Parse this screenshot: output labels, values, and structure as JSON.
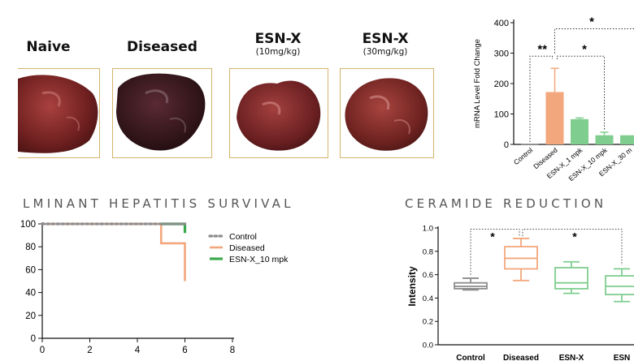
{
  "livers": [
    {
      "label": "Naive",
      "sub": ""
    },
    {
      "label": "Diseased",
      "sub": ""
    },
    {
      "label": "ESN-X",
      "sub": "(10mg/kg)"
    },
    {
      "label": "ESN-X",
      "sub": "(30mg/kg)"
    }
  ],
  "colors": {
    "control": "#8c8c8c",
    "diseased": "#f2a77c",
    "esn": "#7fce8f",
    "esn_survival": "#3aa94c",
    "liver_frame": "#d4b36a"
  },
  "chart_data": [
    {
      "type": "bar",
      "title": "",
      "ylabel": "mRNA Level Fold Change",
      "xlabel": "",
      "ylim": [
        0,
        400
      ],
      "yticks": [
        0,
        100,
        200,
        300,
        400
      ],
      "categories": [
        "Control",
        "Diseased",
        "ESN-X_1 mpk",
        "ESN-X_10 mpk",
        "ESN-X_30 m"
      ],
      "values": [
        2,
        172,
        83,
        30,
        30
      ],
      "errors": [
        0,
        78,
        4,
        10,
        0
      ],
      "significance": [
        "**",
        "*",
        "*"
      ]
    },
    {
      "type": "line",
      "title": "LMINANT HEPATITIS SURVIVAL",
      "xlabel": "",
      "ylabel": "",
      "xlim": [
        0,
        8
      ],
      "ylim": [
        0,
        100
      ],
      "xticks": [
        0,
        2,
        4,
        6,
        8
      ],
      "yticks": [
        0,
        20,
        40,
        60,
        80,
        100
      ],
      "legend": "top-right",
      "series": [
        {
          "name": "Control",
          "x": [
            0,
            6
          ],
          "y": [
            100,
            100
          ]
        },
        {
          "name": "Diseased",
          "x": [
            0,
            5,
            5,
            6,
            6
          ],
          "y": [
            100,
            100,
            83,
            83,
            50
          ]
        },
        {
          "name": "ESN-X_10 mpk",
          "x": [
            5,
            6,
            6
          ],
          "y": [
            100,
            100,
            92
          ]
        }
      ]
    },
    {
      "type": "box",
      "title": "CERAMIDE REDUCTION",
      "ylabel": "Intensity",
      "xlabel": "",
      "ylim": [
        0,
        1.0
      ],
      "yticks": [
        "0.0",
        "0.2",
        "0.4",
        "0.6",
        "0.8",
        "1.0"
      ],
      "categories": [
        "Control",
        "Diseased",
        "ESN-X",
        "ESN"
      ],
      "boxes": [
        {
          "min": 0.47,
          "q1": 0.48,
          "median": 0.5,
          "q3": 0.53,
          "max": 0.57
        },
        {
          "min": 0.55,
          "q1": 0.65,
          "median": 0.74,
          "q3": 0.84,
          "max": 0.91
        },
        {
          "min": 0.44,
          "q1": 0.48,
          "median": 0.53,
          "q3": 0.66,
          "max": 0.71
        },
        {
          "min": 0.37,
          "q1": 0.43,
          "median": 0.5,
          "q3": 0.59,
          "max": 0.65
        }
      ],
      "significance": [
        "*",
        "*"
      ]
    }
  ]
}
